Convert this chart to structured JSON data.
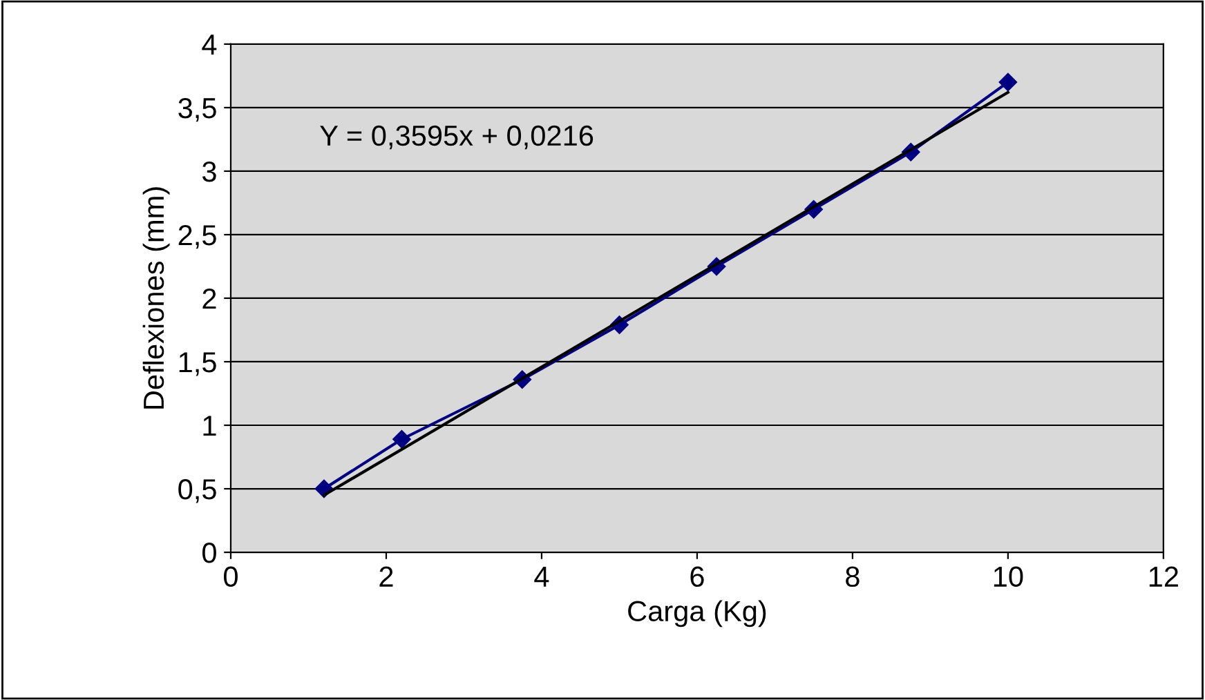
{
  "chart_data": {
    "type": "line",
    "xlabel": "Carga (Kg)",
    "ylabel": "Deflexiones (mm)",
    "series": [
      {
        "color": "#000080",
        "marker": "diamond",
        "x": [
          1.2,
          2.2,
          3.75,
          5,
          6.25,
          7.5,
          8.75,
          10
        ],
        "values": [
          0.5,
          0.89,
          1.36,
          1.79,
          2.25,
          2.7,
          3.15,
          3.7
        ]
      },
      {
        "color": "#000000",
        "marker": "none",
        "x": [
          1.2,
          10
        ],
        "values": [
          0.45,
          3.62
        ]
      }
    ],
    "annotations": [
      "Y = 0,3595x + 0,0216"
    ],
    "xlim": [
      0,
      12
    ],
    "xticks": [
      0,
      2,
      4,
      6,
      8,
      10,
      12
    ],
    "ylim": [
      0,
      4
    ],
    "yticks": [
      0,
      {
        "value": 0.5,
        "label": "0,5"
      },
      1,
      {
        "value": 1.5,
        "label": "1,5"
      },
      2,
      {
        "value": 2.5,
        "label": "2,5"
      },
      3,
      {
        "value": 3.5,
        "label": "3,5"
      },
      4
    ],
    "grid": "y",
    "legend": false
  }
}
